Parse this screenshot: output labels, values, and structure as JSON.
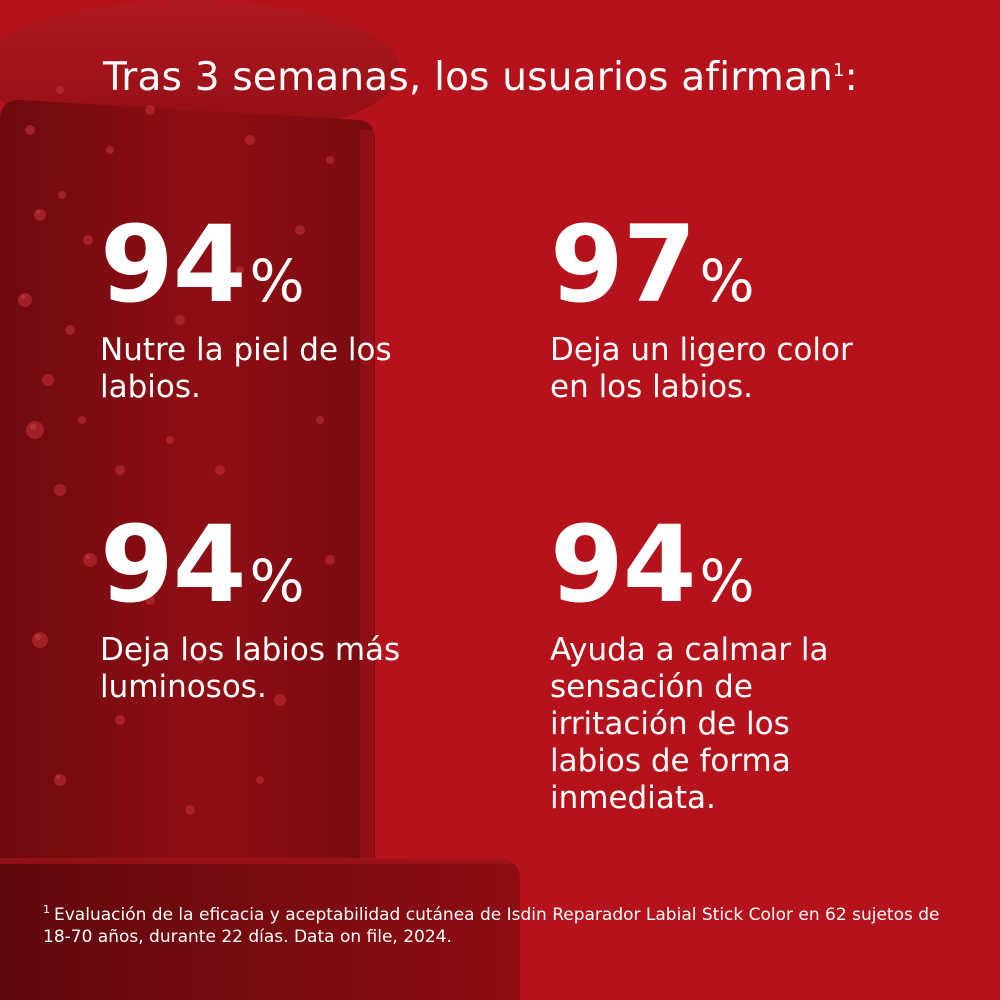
{
  "headline": {
    "text": "Tras 3 semanas, los usuarios afirman",
    "superscript": "1",
    "colon": ":"
  },
  "stats": [
    {
      "value": "94",
      "unit": "%",
      "description": "Nutre la piel de los\nlabios."
    },
    {
      "value": "97",
      "unit": "%",
      "description": "Deja un ligero color\nen los labios."
    },
    {
      "value": "94",
      "unit": "%",
      "description": "Deja los labios más\nluminosos."
    },
    {
      "value": "94",
      "unit": "%",
      "description": "Ayuda a calmar la\nsensación de\nirritación de los\nlabios de forma\ninmediata."
    }
  ],
  "footnote": {
    "marker": "1",
    "text": "Evaluación de la eficacia y aceptabilidad cutánea de Isdin Reparador Labial Stick Color en 62 sujetos de 18-70 años, durante 22 días. Data on file, 2024."
  },
  "colors": {
    "background": "#b5121b",
    "text": "#ffffff",
    "product_dark": "#7e0c10",
    "product_mid": "#9c0f16"
  },
  "background_image": "lipstick-with-water-droplets"
}
